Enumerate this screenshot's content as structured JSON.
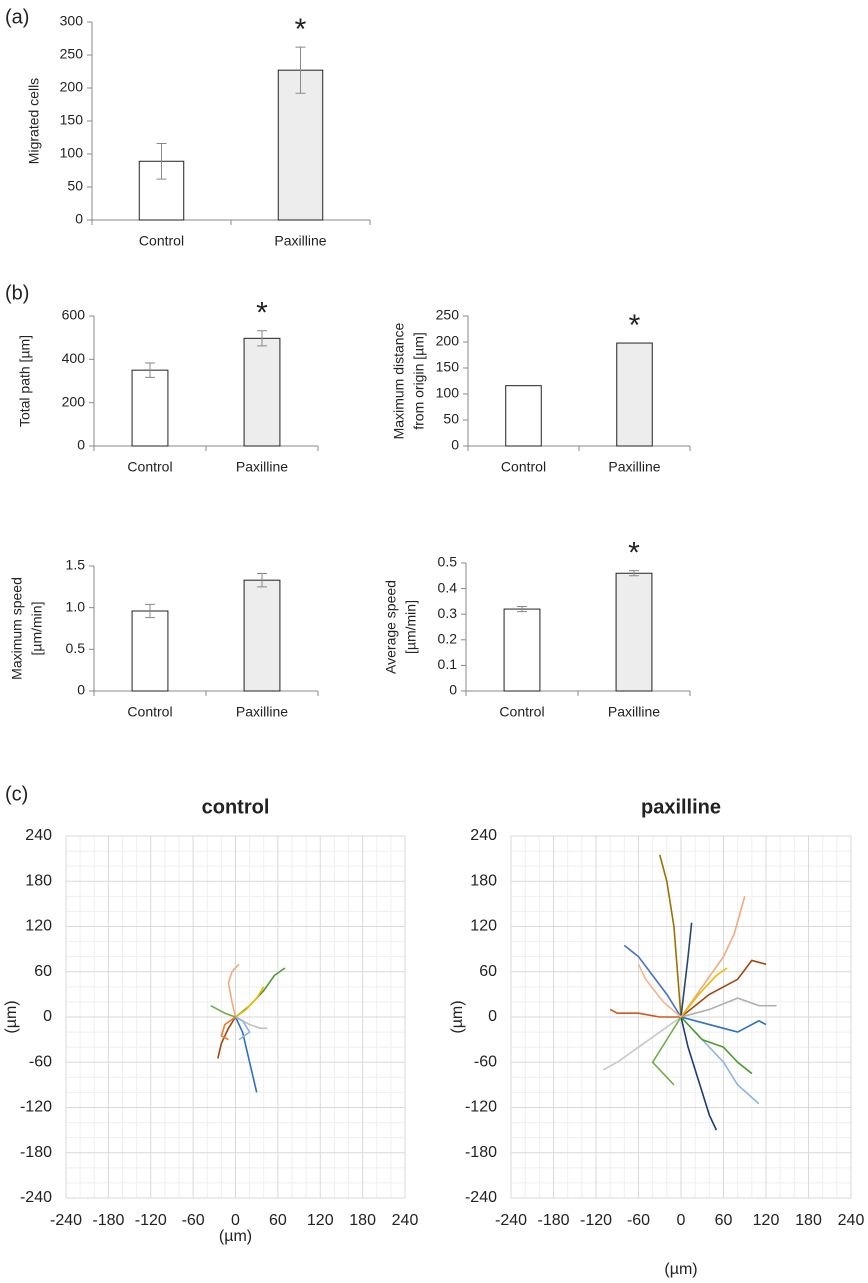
{
  "chart_data": [
    {
      "type": "bar",
      "panel_label": "(a)",
      "ylabel": [
        "Migrated cells"
      ],
      "categories": [
        "Control",
        "Paxilline"
      ],
      "values": [
        89,
        227
      ],
      "errors": [
        27,
        35
      ],
      "colors": [
        "#ffffff",
        "#ededed"
      ],
      "ylim": [
        0,
        300
      ],
      "yticks": [
        0,
        50,
        100,
        150,
        200,
        250,
        300
      ],
      "annotation": "*"
    },
    {
      "type": "bar",
      "panel_label": "(b)",
      "ylabel": [
        "Total path [µm]"
      ],
      "categories": [
        "Control",
        "Paxilline"
      ],
      "values": [
        350,
        497
      ],
      "errors": [
        33,
        35
      ],
      "colors": [
        "#ffffff",
        "#ededed"
      ],
      "ylim": [
        0,
        600
      ],
      "yticks": [
        0,
        200,
        400,
        600
      ],
      "annotation": "*"
    },
    {
      "type": "bar",
      "ylabel": [
        "Maximum distance",
        "from origin [µm]"
      ],
      "categories": [
        "Control",
        "Paxilline"
      ],
      "values": [
        116,
        198
      ],
      "colors": [
        "#ffffff",
        "#ededed"
      ],
      "ylim": [
        0,
        250
      ],
      "yticks": [
        0,
        50,
        100,
        150,
        200,
        250
      ],
      "annotation": "*"
    },
    {
      "type": "bar",
      "ylabel": [
        "Maximum speed",
        "[µm/min]"
      ],
      "categories": [
        "Control",
        "Paxilline"
      ],
      "values": [
        0.96,
        1.33
      ],
      "errors": [
        0.08,
        0.08
      ],
      "colors": [
        "#ffffff",
        "#ededed"
      ],
      "ylim": [
        0,
        1.5
      ],
      "yticks": [
        0,
        0.5,
        {
          "value": 1,
          "label": "1.0"
        },
        1.5
      ]
    },
    {
      "type": "bar",
      "ylabel": [
        "Average speed",
        "[µm/min]"
      ],
      "categories": [
        "Control",
        "Paxilline"
      ],
      "values": [
        0.32,
        0.46
      ],
      "errors": [
        0.01,
        0.01
      ],
      "colors": [
        "#ffffff",
        "#ededed"
      ],
      "ylim": [
        0,
        0.5
      ],
      "yticks": [
        0,
        0.1,
        0.2,
        0.3,
        0.4,
        0.5
      ],
      "annotation": "*"
    },
    {
      "type": "line",
      "panel_label": "(c)",
      "title": "control",
      "xlabel": "(µm)",
      "ylabel": [
        "(µm)"
      ],
      "grid": true,
      "xlim": [
        -240,
        240
      ],
      "ylim": [
        -240,
        240
      ],
      "xticks": [
        -240,
        -180,
        -120,
        -60,
        0,
        60,
        120,
        180,
        240
      ],
      "yticks": [
        -240,
        -180,
        -120,
        -60,
        0,
        60,
        120,
        180,
        240
      ],
      "series": [
        {
          "color": "#2e6fc0",
          "x": [
            0,
            10,
            15,
            20,
            25,
            30
          ],
          "y": [
            0,
            -20,
            -40,
            -60,
            -80,
            -100
          ]
        },
        {
          "color": "#4e9a2f",
          "x": [
            0,
            20,
            40,
            55,
            70
          ],
          "y": [
            0,
            15,
            35,
            55,
            65
          ]
        },
        {
          "color": "#f4a880",
          "x": [
            0,
            -5,
            -10,
            -5,
            5
          ],
          "y": [
            0,
            20,
            45,
            60,
            70
          ]
        },
        {
          "color": "#f2b800",
          "x": [
            0,
            15,
            30,
            40
          ],
          "y": [
            0,
            10,
            25,
            40
          ]
        },
        {
          "color": "#70ad47",
          "x": [
            0,
            -15,
            -25,
            -35
          ],
          "y": [
            0,
            5,
            10,
            15
          ]
        },
        {
          "color": "#9e480e",
          "x": [
            0,
            -10,
            -20,
            -25
          ],
          "y": [
            0,
            -15,
            -35,
            -55
          ]
        },
        {
          "color": "#c0c0c0",
          "x": [
            0,
            20,
            35,
            45
          ],
          "y": [
            0,
            -10,
            -15,
            -15
          ]
        },
        {
          "color": "#8db4e2",
          "x": [
            0,
            10,
            20,
            5
          ],
          "y": [
            0,
            -5,
            -20,
            -30
          ]
        },
        {
          "color": "#ed7d31",
          "x": [
            0,
            -15,
            -20,
            -10
          ],
          "y": [
            0,
            -10,
            -25,
            -30
          ]
        }
      ]
    },
    {
      "type": "line",
      "title": "paxilline",
      "xlabel": "(µm)",
      "ylabel": [
        "(µm)"
      ],
      "grid": true,
      "xlim": [
        -240,
        240
      ],
      "ylim": [
        -240,
        240
      ],
      "xticks": [
        -240,
        -180,
        -120,
        -60,
        0,
        60,
        120,
        180,
        240
      ],
      "yticks": [
        -240,
        -180,
        -120,
        -60,
        0,
        60,
        120,
        180,
        240
      ],
      "series": [
        {
          "color": "#997300",
          "x": [
            0,
            -5,
            -10,
            -20,
            -30
          ],
          "y": [
            0,
            60,
            120,
            180,
            215
          ]
        },
        {
          "color": "#f4a880",
          "x": [
            0,
            30,
            60,
            75,
            90
          ],
          "y": [
            0,
            40,
            80,
            110,
            160
          ]
        },
        {
          "color": "#9e480e",
          "x": [
            0,
            40,
            80,
            100,
            120
          ],
          "y": [
            0,
            30,
            50,
            75,
            70
          ]
        },
        {
          "color": "#b0b0b0",
          "x": [
            0,
            40,
            80,
            110,
            135
          ],
          "y": [
            0,
            10,
            25,
            15,
            15
          ]
        },
        {
          "color": "#2e6fc0",
          "x": [
            0,
            40,
            80,
            110,
            120
          ],
          "y": [
            0,
            -10,
            -20,
            -5,
            -10
          ]
        },
        {
          "color": "#8db4e2",
          "x": [
            0,
            30,
            60,
            80,
            110
          ],
          "y": [
            0,
            -30,
            -60,
            -90,
            -115
          ]
        },
        {
          "color": "#4e9a2f",
          "x": [
            0,
            30,
            60,
            80,
            100
          ],
          "y": [
            0,
            -30,
            -40,
            -60,
            -75
          ]
        },
        {
          "color": "#1f3c78",
          "x": [
            0,
            10,
            20,
            30,
            40,
            50
          ],
          "y": [
            0,
            -40,
            -70,
            -100,
            -130,
            -150
          ]
        },
        {
          "color": "#c8c8c8",
          "x": [
            0,
            -30,
            -60,
            -90,
            -110
          ],
          "y": [
            0,
            -20,
            -40,
            -60,
            -70
          ]
        },
        {
          "color": "#d0581a",
          "x": [
            0,
            -30,
            -60,
            -90,
            -100
          ],
          "y": [
            0,
            0,
            5,
            5,
            10
          ]
        },
        {
          "color": "#4472c4",
          "x": [
            0,
            -20,
            -40,
            -60,
            -80
          ],
          "y": [
            0,
            30,
            55,
            80,
            95
          ]
        },
        {
          "color": "#264478",
          "x": [
            0,
            5,
            10,
            15
          ],
          "y": [
            0,
            40,
            80,
            125
          ]
        },
        {
          "color": "#70ad47",
          "x": [
            0,
            -20,
            -40,
            -20,
            -10
          ],
          "y": [
            0,
            -30,
            -60,
            -80,
            -90
          ]
        },
        {
          "color": "#f2b800",
          "x": [
            0,
            25,
            50,
            65
          ],
          "y": [
            0,
            30,
            55,
            65
          ]
        },
        {
          "color": "#f8b48c",
          "x": [
            0,
            -25,
            -50,
            -60
          ],
          "y": [
            0,
            20,
            50,
            70
          ]
        }
      ]
    }
  ]
}
